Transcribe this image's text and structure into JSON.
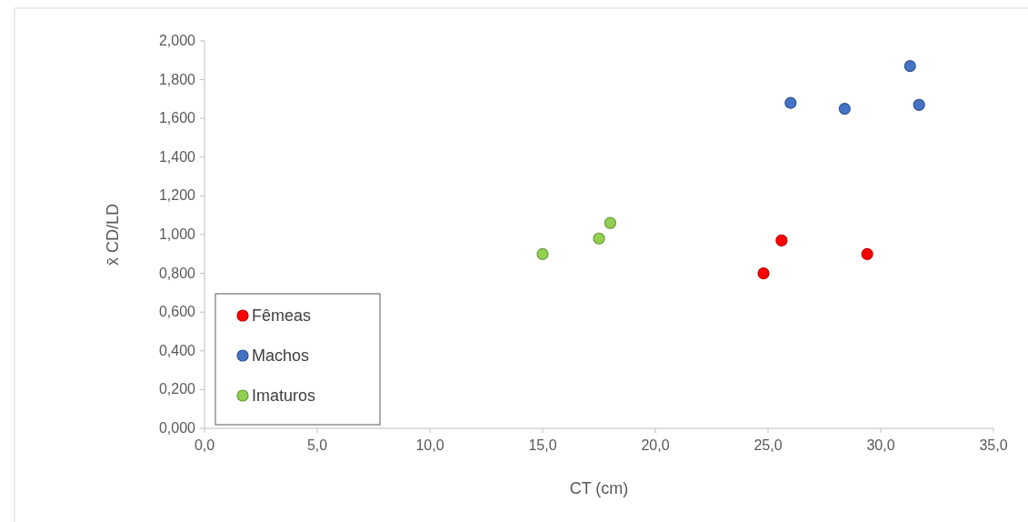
{
  "chart_data": {
    "type": "scatter",
    "xlabel": "CT (cm)",
    "ylabel": "x̄ CD/LD",
    "series": [
      {
        "name": "Fêmeas",
        "color": "#ff0000",
        "x": [
          24.8,
          25.6,
          29.4
        ],
        "values": [
          0.8,
          0.97,
          0.9
        ]
      },
      {
        "name": "Machos",
        "color": "#4472c4",
        "x": [
          26.0,
          28.4,
          31.3,
          31.7
        ],
        "values": [
          1.68,
          1.65,
          1.87,
          1.67
        ]
      },
      {
        "name": "Imaturos",
        "color": "#92d050",
        "x": [
          15.0,
          17.5,
          18.0
        ],
        "values": [
          0.9,
          0.98,
          1.06
        ]
      }
    ],
    "xlim": [
      0,
      35
    ],
    "xticks": [
      {
        "value": 0,
        "label": "0,0"
      },
      {
        "value": 5,
        "label": "5,0"
      },
      {
        "value": 10,
        "label": "10,0"
      },
      {
        "value": 15,
        "label": "15,0"
      },
      {
        "value": 20,
        "label": "20,0"
      },
      {
        "value": 25,
        "label": "25,0"
      },
      {
        "value": 30,
        "label": "30,0"
      },
      {
        "value": 35,
        "label": "35,0"
      }
    ],
    "ylim": [
      0,
      2
    ],
    "yticks": [
      {
        "value": 0,
        "label": "0,000"
      },
      {
        "value": 0.2,
        "label": "0,200"
      },
      {
        "value": 0.4,
        "label": "0,400"
      },
      {
        "value": 0.6,
        "label": "0,600"
      },
      {
        "value": 0.8,
        "label": "0,800"
      },
      {
        "value": 1,
        "label": "1,000"
      },
      {
        "value": 1.2,
        "label": "1,200"
      },
      {
        "value": 1.4,
        "label": "1,400"
      },
      {
        "value": 1.6,
        "label": "1,600"
      },
      {
        "value": 1.8,
        "label": "1,800"
      },
      {
        "value": 2,
        "label": "2,000"
      }
    ],
    "legend": "bottom left",
    "marker": "circle"
  }
}
